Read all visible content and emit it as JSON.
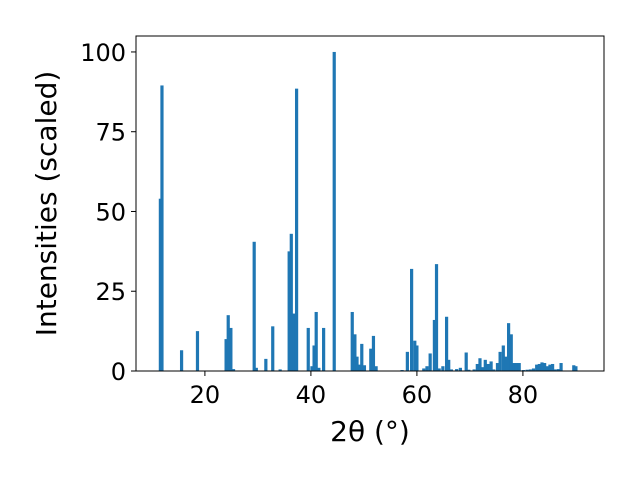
{
  "chart_data": {
    "type": "bar",
    "xlabel": "2θ (°)",
    "ylabel": "Intensities (scaled)",
    "xlim": [
      7,
      95.3
    ],
    "ylim": [
      0,
      105
    ],
    "x_ticks": [
      20,
      40,
      60,
      80
    ],
    "y_ticks": [
      0,
      25,
      50,
      75,
      100
    ],
    "grid": false,
    "bar_color": "#1f77b4",
    "bars": [
      {
        "x": 11.6,
        "y": 54
      },
      {
        "x": 11.9,
        "y": 89.5
      },
      {
        "x": 15.6,
        "y": 6.5
      },
      {
        "x": 18.6,
        "y": 12.5
      },
      {
        "x": 24.0,
        "y": 10
      },
      {
        "x": 24.4,
        "y": 17.5
      },
      {
        "x": 24.9,
        "y": 13.5
      },
      {
        "x": 25.4,
        "y": 0.6
      },
      {
        "x": 29.3,
        "y": 40.5
      },
      {
        "x": 29.7,
        "y": 1
      },
      {
        "x": 31.5,
        "y": 3.8
      },
      {
        "x": 32.8,
        "y": 14
      },
      {
        "x": 34.2,
        "y": 0.5
      },
      {
        "x": 35.9,
        "y": 37.5
      },
      {
        "x": 36.3,
        "y": 43
      },
      {
        "x": 36.8,
        "y": 18
      },
      {
        "x": 37.3,
        "y": 88.5
      },
      {
        "x": 39.5,
        "y": 13.5
      },
      {
        "x": 40.2,
        "y": 1.5
      },
      {
        "x": 40.6,
        "y": 8
      },
      {
        "x": 41.0,
        "y": 18.5
      },
      {
        "x": 41.5,
        "y": 1
      },
      {
        "x": 42.4,
        "y": 13.5
      },
      {
        "x": 44.4,
        "y": 100
      },
      {
        "x": 47.8,
        "y": 18.5
      },
      {
        "x": 48.3,
        "y": 11.5
      },
      {
        "x": 48.7,
        "y": 4.5
      },
      {
        "x": 49.2,
        "y": 2
      },
      {
        "x": 49.6,
        "y": 8.5
      },
      {
        "x": 50.1,
        "y": 1.8
      },
      {
        "x": 51.3,
        "y": 7
      },
      {
        "x": 51.8,
        "y": 11
      },
      {
        "x": 52.3,
        "y": 1.5
      },
      {
        "x": 57.2,
        "y": 0.3
      },
      {
        "x": 58.2,
        "y": 6
      },
      {
        "x": 59.0,
        "y": 32
      },
      {
        "x": 59.6,
        "y": 9.5
      },
      {
        "x": 60.0,
        "y": 8
      },
      {
        "x": 61.3,
        "y": 0.8
      },
      {
        "x": 61.9,
        "y": 1.5
      },
      {
        "x": 62.5,
        "y": 5.5
      },
      {
        "x": 63.3,
        "y": 16
      },
      {
        "x": 63.7,
        "y": 33.5
      },
      {
        "x": 64.2,
        "y": 0.8
      },
      {
        "x": 64.9,
        "y": 1.5
      },
      {
        "x": 65.6,
        "y": 17
      },
      {
        "x": 66.0,
        "y": 3.5
      },
      {
        "x": 66.5,
        "y": 0.5
      },
      {
        "x": 67.5,
        "y": 0.6
      },
      {
        "x": 68.2,
        "y": 1
      },
      {
        "x": 69.3,
        "y": 5.8
      },
      {
        "x": 69.8,
        "y": 0.4
      },
      {
        "x": 70.8,
        "y": 0.5
      },
      {
        "x": 71.4,
        "y": 2.2
      },
      {
        "x": 71.9,
        "y": 4
      },
      {
        "x": 72.4,
        "y": 1.2
      },
      {
        "x": 72.9,
        "y": 3.5
      },
      {
        "x": 73.4,
        "y": 2.2
      },
      {
        "x": 74.0,
        "y": 3
      },
      {
        "x": 74.5,
        "y": 0.5
      },
      {
        "x": 75.2,
        "y": 2.5
      },
      {
        "x": 75.7,
        "y": 6
      },
      {
        "x": 76.3,
        "y": 8
      },
      {
        "x": 76.8,
        "y": 4.5
      },
      {
        "x": 77.3,
        "y": 15
      },
      {
        "x": 77.8,
        "y": 11.5
      },
      {
        "x": 78.3,
        "y": 2.5
      },
      {
        "x": 78.8,
        "y": 2.5
      },
      {
        "x": 79.3,
        "y": 2.5
      },
      {
        "x": 80.1,
        "y": 0.3
      },
      {
        "x": 80.8,
        "y": 0.4
      },
      {
        "x": 81.4,
        "y": 0.5
      },
      {
        "x": 82.0,
        "y": 0.8
      },
      {
        "x": 82.6,
        "y": 2
      },
      {
        "x": 83.1,
        "y": 2.2
      },
      {
        "x": 83.6,
        "y": 2.7
      },
      {
        "x": 84.1,
        "y": 2.5
      },
      {
        "x": 84.6,
        "y": 1.5
      },
      {
        "x": 85.1,
        "y": 2
      },
      {
        "x": 85.6,
        "y": 2.2
      },
      {
        "x": 86.1,
        "y": 0.5
      },
      {
        "x": 86.7,
        "y": 0.6
      },
      {
        "x": 87.2,
        "y": 2.5
      },
      {
        "x": 89.6,
        "y": 1.8
      },
      {
        "x": 90.0,
        "y": 1.5
      }
    ]
  }
}
